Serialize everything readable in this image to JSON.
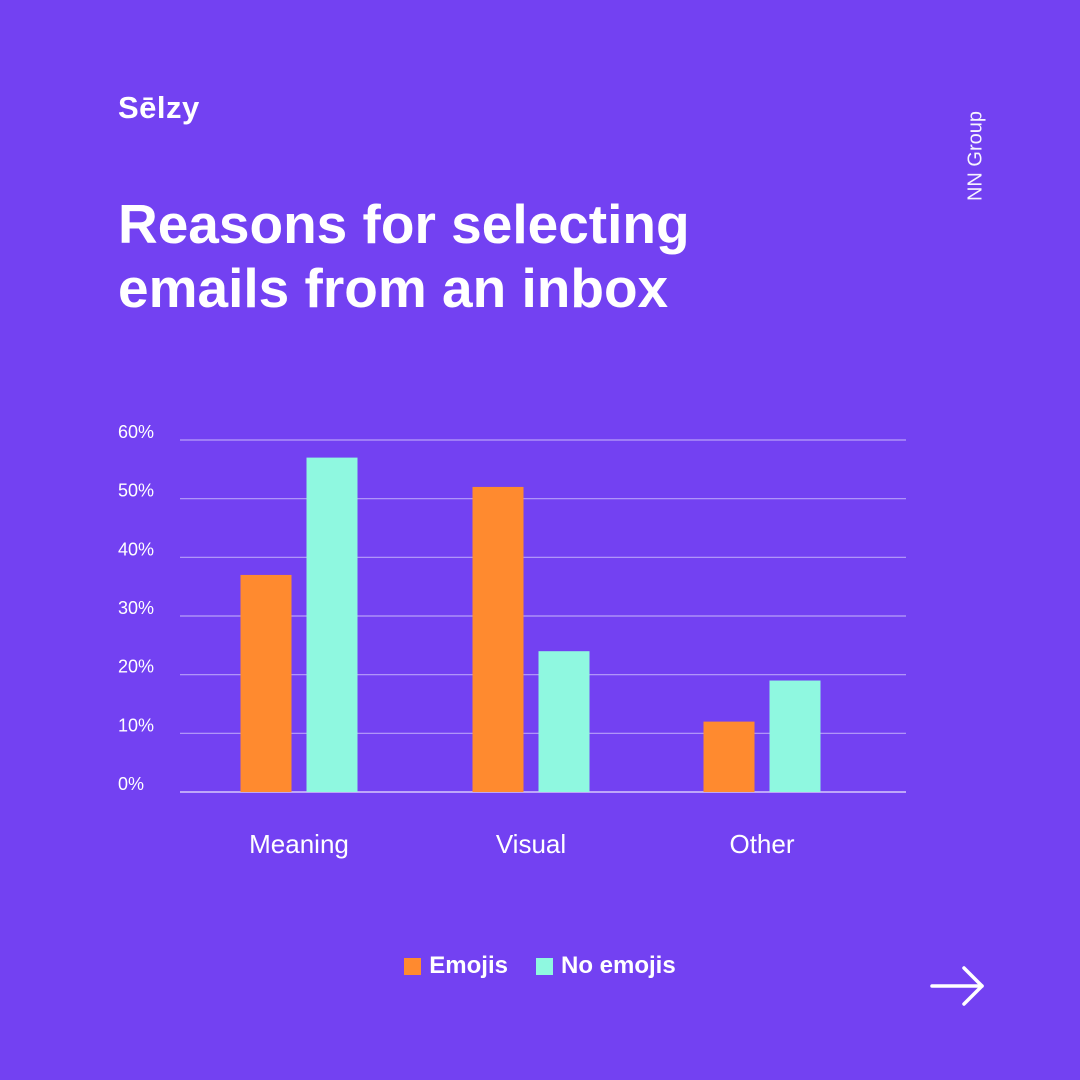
{
  "brand": {
    "logo_text": "Sēlzy"
  },
  "source": "NN Group",
  "colors": {
    "background": "#7341f2",
    "emojis": "#ff8a2f",
    "no_emojis": "#8ff8e0",
    "text": "#ffffff"
  },
  "chart_data": {
    "type": "bar",
    "title": "Reasons for selecting emails from an inbox",
    "title_lines": [
      "Reasons for selecting",
      "emails from an inbox"
    ],
    "categories": [
      "Meaning",
      "Visual",
      "Other"
    ],
    "series": [
      {
        "name": "Emojis",
        "values": [
          37,
          52,
          12
        ]
      },
      {
        "name": "No emojis",
        "values": [
          57,
          24,
          19
        ]
      }
    ],
    "ylim": [
      0,
      60
    ],
    "yticks": [
      0,
      10,
      20,
      30,
      40,
      50,
      60
    ],
    "ytick_labels": [
      "0%",
      "10%",
      "20%",
      "30%",
      "40%",
      "50%",
      "60%"
    ],
    "grid": true,
    "legend_position": "bottom-center"
  },
  "navigation": {
    "next_icon": "arrow-right-icon"
  }
}
